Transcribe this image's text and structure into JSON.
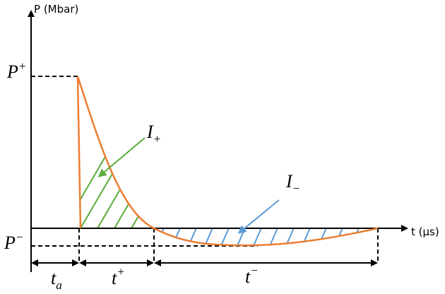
{
  "axes": {
    "y_label": "P (Mbar)",
    "x_label": "t (μs)"
  },
  "labels": {
    "p_plus": {
      "base": "P",
      "sup": "+"
    },
    "p_minus": {
      "base": "P",
      "sup": "−"
    },
    "i_plus": {
      "base": "I",
      "sub": "+"
    },
    "i_minus": {
      "base": "I",
      "sub": "−"
    },
    "t_a": {
      "base": "t",
      "sub": "a"
    },
    "t_plus": {
      "base": "t",
      "sup": "+"
    },
    "t_minus": {
      "base": "t",
      "sup": "−"
    }
  }
}
